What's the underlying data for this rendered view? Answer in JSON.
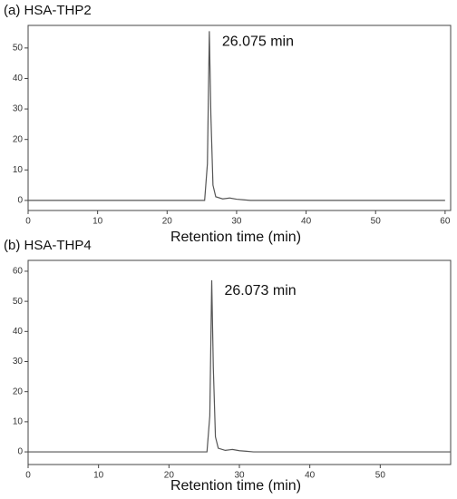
{
  "chart_data": [
    {
      "type": "line",
      "title": "(a) HSA-THP2",
      "annotation": "26.075 min",
      "x_label": "Retention time (min)",
      "x": [
        0,
        25.4,
        25.8,
        26.075,
        26.3,
        26.6,
        27,
        28,
        29,
        30,
        31,
        32,
        40,
        60
      ],
      "series": [
        {
          "color": "#555555",
          "values": [
            0,
            0,
            12,
            55.5,
            28,
            5,
            1.2,
            0.5,
            0.8,
            0.4,
            0.2,
            0,
            0,
            0
          ]
        }
      ],
      "xlim": [
        0,
        60.8
      ],
      "ylim": [
        -3.3,
        57.4
      ],
      "xticks": [
        0,
        10,
        20,
        30,
        40,
        50,
        60
      ],
      "yticks": [
        0,
        10,
        20,
        30,
        40,
        50
      ]
    },
    {
      "type": "line",
      "title": "(b) HSA-THP4",
      "annotation": "26.073 min",
      "x_label": "Retention time (min)",
      "x": [
        0,
        25.4,
        25.8,
        26.073,
        26.3,
        26.6,
        27,
        28,
        29,
        30,
        31,
        32,
        40,
        60
      ],
      "series": [
        {
          "color": "#555555",
          "values": [
            0,
            0,
            12,
            57,
            28,
            5,
            1.2,
            0.5,
            0.8,
            0.4,
            0.2,
            0,
            0,
            0
          ]
        }
      ],
      "xlim": [
        0,
        60
      ],
      "ylim": [
        -4.2,
        63.6
      ],
      "xticks": [
        0,
        10,
        20,
        30,
        40,
        50
      ],
      "yticks": [
        0,
        10,
        20,
        30,
        40,
        50,
        60
      ]
    }
  ]
}
